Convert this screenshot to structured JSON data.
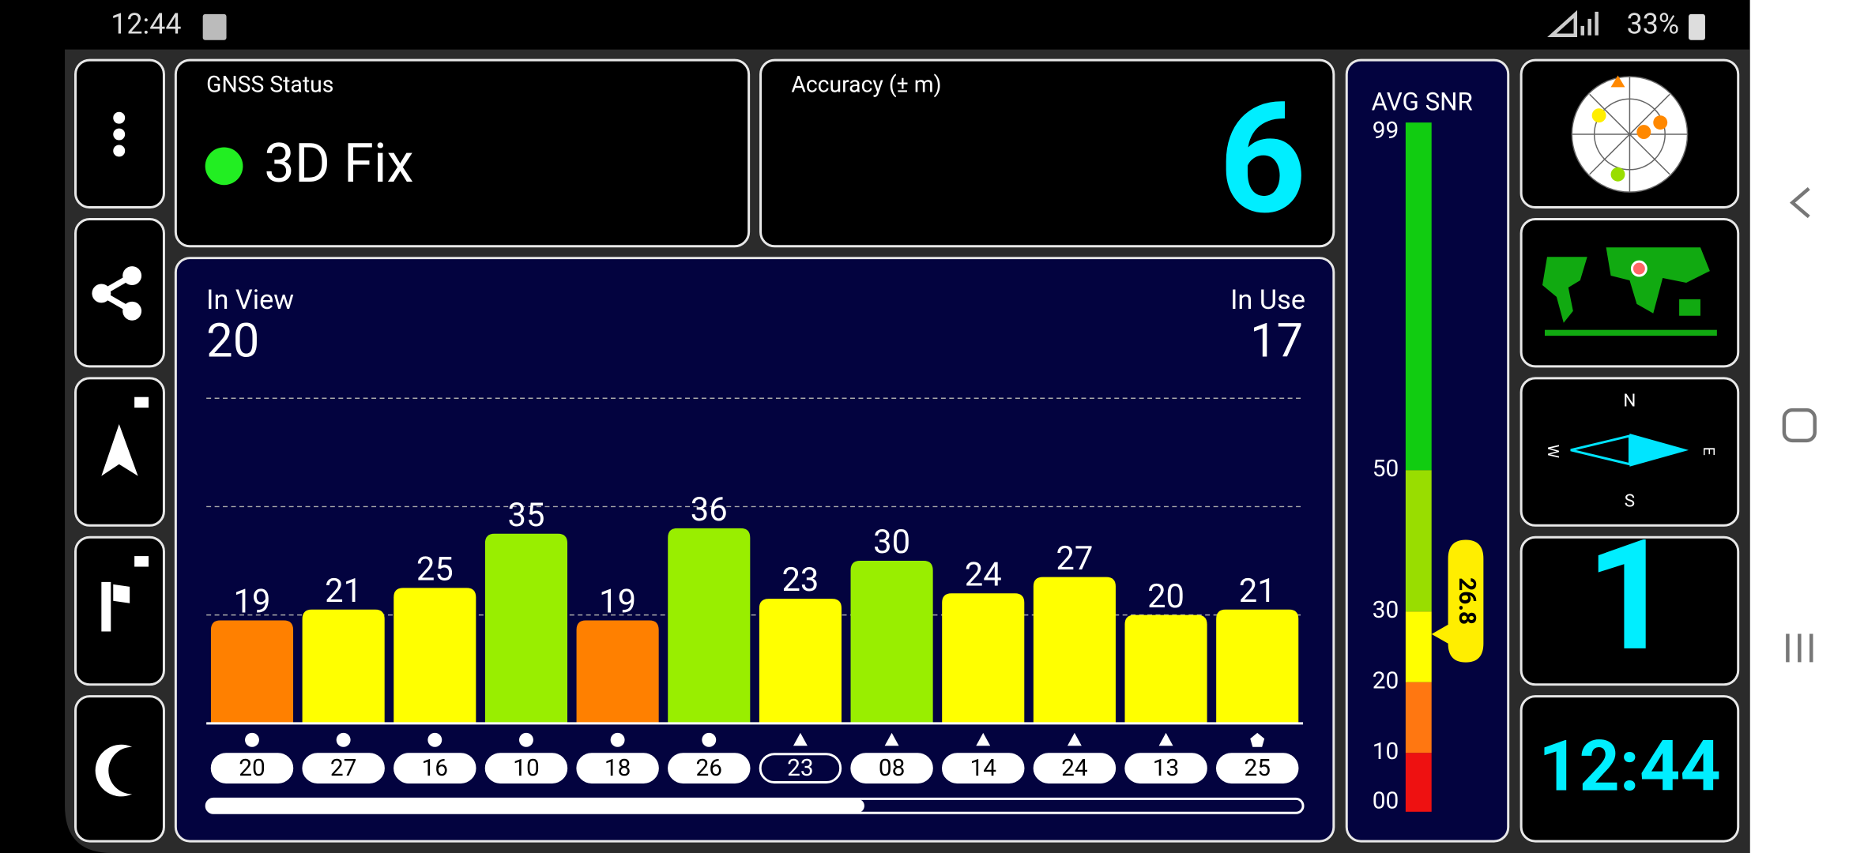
{
  "status_bar": {
    "time": "12:44",
    "battery": "33%"
  },
  "gnss_status": {
    "label": "GNSS Status",
    "value": "3D Fix"
  },
  "accuracy": {
    "label": "Accuracy (± m)",
    "value": 6
  },
  "sky": {
    "in_view_label": "In View",
    "in_view": 20,
    "in_use_label": "In Use",
    "in_use": 17
  },
  "chart_data": [
    {
      "type": "bar",
      "categories": [
        "20",
        "27",
        "16",
        "10",
        "18",
        "26",
        "23",
        "08",
        "14",
        "24",
        "13",
        "25"
      ],
      "values": [
        19,
        21,
        25,
        35,
        19,
        36,
        23,
        30,
        24,
        27,
        20,
        21
      ],
      "colors": [
        "#ff8000",
        "#ffff00",
        "#ffff00",
        "#99ee00",
        "#ff8000",
        "#99ee00",
        "#ffff00",
        "#99ee00",
        "#ffff00",
        "#ffff00",
        "#ffff00",
        "#ffff00"
      ],
      "markers": [
        "circle",
        "circle",
        "circle",
        "circle",
        "circle",
        "circle",
        "triangle",
        "triangle",
        "triangle",
        "triangle",
        "triangle",
        "pentagon"
      ],
      "outlined": [
        false,
        false,
        false,
        false,
        false,
        false,
        true,
        false,
        false,
        false,
        false,
        false
      ],
      "ylim": [
        0,
        60
      ],
      "grid": true
    },
    {
      "type": "gauge",
      "title": "AVG SNR",
      "value": 26.8,
      "ticks": [
        {
          "value": 0,
          "label": "00"
        },
        10,
        20,
        30,
        50,
        99
      ],
      "band_colors": [
        "#ee1111",
        "#ff7711",
        "#ffff00",
        "#99dd00",
        "#11cc11"
      ]
    }
  ],
  "satellites_tile": "1",
  "clock": "12:44",
  "compass": {
    "north": "N",
    "east": "E",
    "south": "S",
    "west": "W"
  }
}
